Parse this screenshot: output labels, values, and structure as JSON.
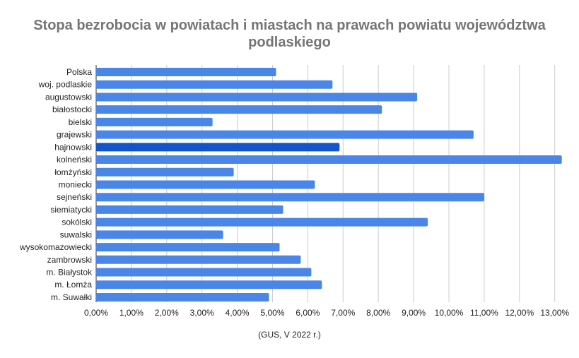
{
  "chart_data": {
    "type": "bar",
    "orientation": "horizontal",
    "title_lines": [
      "Stopa bezrobocia w powiatach i miastach na prawach powiatu województwa",
      "podlaskiego"
    ],
    "xlabel": "(GUS, V 2022 r.)",
    "ylabel": "",
    "categories": [
      "Polska",
      "woj. podlaskie",
      "augustowski",
      "białostocki",
      "bielski",
      "grajewski",
      "hajnowski",
      "kolneński",
      "łomżyński",
      "moniecki",
      "sejneński",
      "siemiatycki",
      "sokólski",
      "suwalski",
      "wysokomazowiecki",
      "zambrowski",
      "m. Białystok",
      "m. Łomża",
      "m. Suwałki"
    ],
    "values": [
      5.1,
      6.7,
      9.1,
      8.1,
      3.3,
      10.7,
      6.9,
      13.2,
      3.9,
      6.2,
      11.0,
      5.3,
      9.4,
      3.6,
      5.2,
      5.8,
      6.1,
      6.4,
      4.9
    ],
    "xlim": [
      0,
      13.5
    ],
    "tick_values": [
      0,
      1,
      2,
      3,
      4,
      5,
      6,
      7,
      8,
      9,
      10,
      11,
      12,
      13
    ],
    "tick_labels": [
      "0,00%",
      "1,00%",
      "2,00%",
      "3,00%",
      "4,00%",
      "5,00%",
      "6,00%",
      "7,00%",
      "8,00%",
      "9,00%",
      "10,00%",
      "11,00%",
      "12,00%",
      "13,00%"
    ],
    "highlight_category": "hajnowski",
    "grid": true,
    "colors": {
      "bar": "#4a86e8",
      "highlight": "#1155cc",
      "grid": "#cccccc",
      "title": "#757575"
    }
  }
}
